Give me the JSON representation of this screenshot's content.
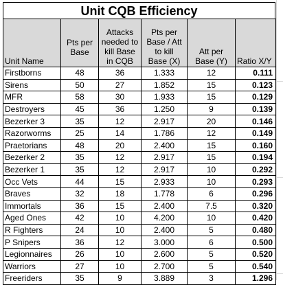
{
  "title": "Unit CQB Efficiency",
  "headers": {
    "unit_name": [
      "Unit Name"
    ],
    "pts_per_base": [
      "Pts per",
      "Base"
    ],
    "attacks_needed": [
      "Attacks",
      "needed to",
      "kill Base",
      "in CQB"
    ],
    "pts_per_base_att": [
      "Pts per",
      "Base / Att",
      "to kill",
      "Base (X)"
    ],
    "att_per_base": [
      "Att per",
      "Base (Y)"
    ],
    "ratio": [
      "Ratio X/Y"
    ]
  },
  "rows": [
    {
      "name": "Firstborns",
      "pts": "48",
      "attacks": "36",
      "x": "1.333",
      "y": "12",
      "ratio": "0.111"
    },
    {
      "name": "Sirens",
      "pts": "50",
      "attacks": "27",
      "x": "1.852",
      "y": "15",
      "ratio": "0.123"
    },
    {
      "name": "MFR",
      "pts": "58",
      "attacks": "30",
      "x": "1.933",
      "y": "15",
      "ratio": "0.129"
    },
    {
      "name": "Destroyers",
      "pts": "45",
      "attacks": "36",
      "x": "1.250",
      "y": "9",
      "ratio": "0.139"
    },
    {
      "name": "Bezerker 3",
      "pts": "35",
      "attacks": "12",
      "x": "2.917",
      "y": "20",
      "ratio": "0.146"
    },
    {
      "name": "Razorworms",
      "pts": "25",
      "attacks": "14",
      "x": "1.786",
      "y": "12",
      "ratio": "0.149"
    },
    {
      "name": "Praetorians",
      "pts": "48",
      "attacks": "20",
      "x": "2.400",
      "y": "15",
      "ratio": "0.160"
    },
    {
      "name": "Bezerker 2",
      "pts": "35",
      "attacks": "12",
      "x": "2.917",
      "y": "15",
      "ratio": "0.194"
    },
    {
      "name": "Bezerker 1",
      "pts": "35",
      "attacks": "12",
      "x": "2.917",
      "y": "10",
      "ratio": "0.292"
    },
    {
      "name": "Occ Vets",
      "pts": "44",
      "attacks": "15",
      "x": "2.933",
      "y": "10",
      "ratio": "0.293"
    },
    {
      "name": "Braves",
      "pts": "32",
      "attacks": "18",
      "x": "1.778",
      "y": "6",
      "ratio": "0.296"
    },
    {
      "name": "Immortals",
      "pts": "36",
      "attacks": "15",
      "x": "2.400",
      "y": "7.5",
      "ratio": "0.320"
    },
    {
      "name": "Aged Ones",
      "pts": "42",
      "attacks": "10",
      "x": "4.200",
      "y": "10",
      "ratio": "0.420"
    },
    {
      "name": "R Fighters",
      "pts": "24",
      "attacks": "10",
      "x": "2.400",
      "y": "5",
      "ratio": "0.480"
    },
    {
      "name": "P Snipers",
      "pts": "36",
      "attacks": "12",
      "x": "3.000",
      "y": "6",
      "ratio": "0.500"
    },
    {
      "name": "Legionnaires",
      "pts": "26",
      "attacks": "10",
      "x": "2.600",
      "y": "5",
      "ratio": "0.520"
    },
    {
      "name": "Warriors",
      "pts": "27",
      "attacks": "10",
      "x": "2.700",
      "y": "5",
      "ratio": "0.540"
    },
    {
      "name": "Freeriders",
      "pts": "35",
      "attacks": "9",
      "x": "3.889",
      "y": "3",
      "ratio": "1.296"
    }
  ]
}
